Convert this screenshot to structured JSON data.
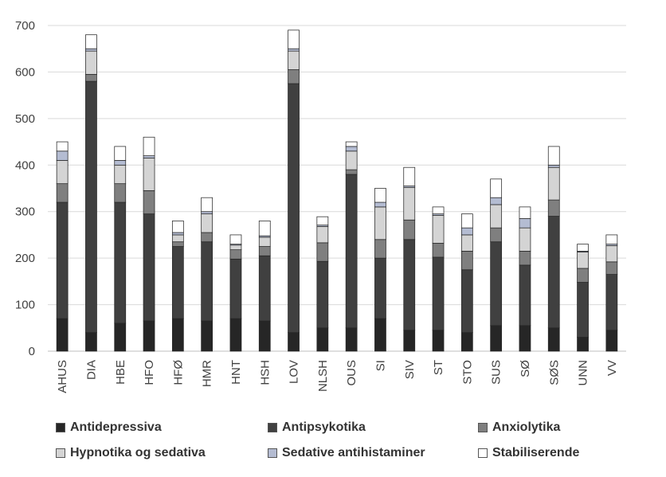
{
  "chart_data": {
    "type": "bar",
    "stacked": true,
    "title": "",
    "xlabel": "",
    "ylabel": "",
    "ylim": [
      0,
      700
    ],
    "yticks": [
      0,
      100,
      200,
      300,
      400,
      500,
      600,
      700
    ],
    "grid": true,
    "legend_position": "bottom",
    "categories": [
      "AHUS",
      "DIA",
      "HBE",
      "HFO",
      "HFØ",
      "HMR",
      "HNT",
      "HSH",
      "LOV",
      "NLSH",
      "OUS",
      "SI",
      "SIV",
      "ST",
      "STO",
      "SUS",
      "SØ",
      "SØS",
      "UNN",
      "VV"
    ],
    "series": [
      {
        "name": "Antidepressiva",
        "color": "#262626",
        "values": [
          70,
          40,
          60,
          65,
          70,
          65,
          70,
          65,
          40,
          50,
          50,
          70,
          45,
          45,
          40,
          55,
          55,
          50,
          30,
          45
        ]
      },
      {
        "name": "Antipsykotika",
        "color": "#404040",
        "values": [
          250,
          540,
          260,
          230,
          155,
          170,
          128,
          140,
          535,
          143,
          330,
          130,
          195,
          157,
          135,
          180,
          130,
          240,
          118,
          120
        ]
      },
      {
        "name": "Anxiolytika",
        "color": "#7f7f7f",
        "values": [
          40,
          15,
          40,
          50,
          10,
          20,
          20,
          20,
          30,
          40,
          10,
          40,
          42,
          30,
          40,
          30,
          30,
          35,
          30,
          27
        ]
      },
      {
        "name": "Hypnotika og sedativa",
        "color": "#d4d4d4",
        "values": [
          50,
          50,
          40,
          70,
          15,
          40,
          10,
          20,
          40,
          35,
          40,
          70,
          70,
          60,
          35,
          50,
          50,
          70,
          35,
          35
        ]
      },
      {
        "name": "Sedative antihistaminer",
        "color": "#b4bcd2",
        "values": [
          20,
          5,
          10,
          5,
          5,
          5,
          2,
          3,
          5,
          3,
          10,
          10,
          3,
          3,
          15,
          15,
          20,
          5,
          2,
          3
        ]
      },
      {
        "name": "Stabiliserende",
        "color": "#ffffff",
        "values": [
          20,
          30,
          30,
          40,
          25,
          30,
          20,
          32,
          40,
          18,
          10,
          30,
          40,
          15,
          30,
          40,
          25,
          40,
          15,
          20
        ]
      }
    ]
  }
}
